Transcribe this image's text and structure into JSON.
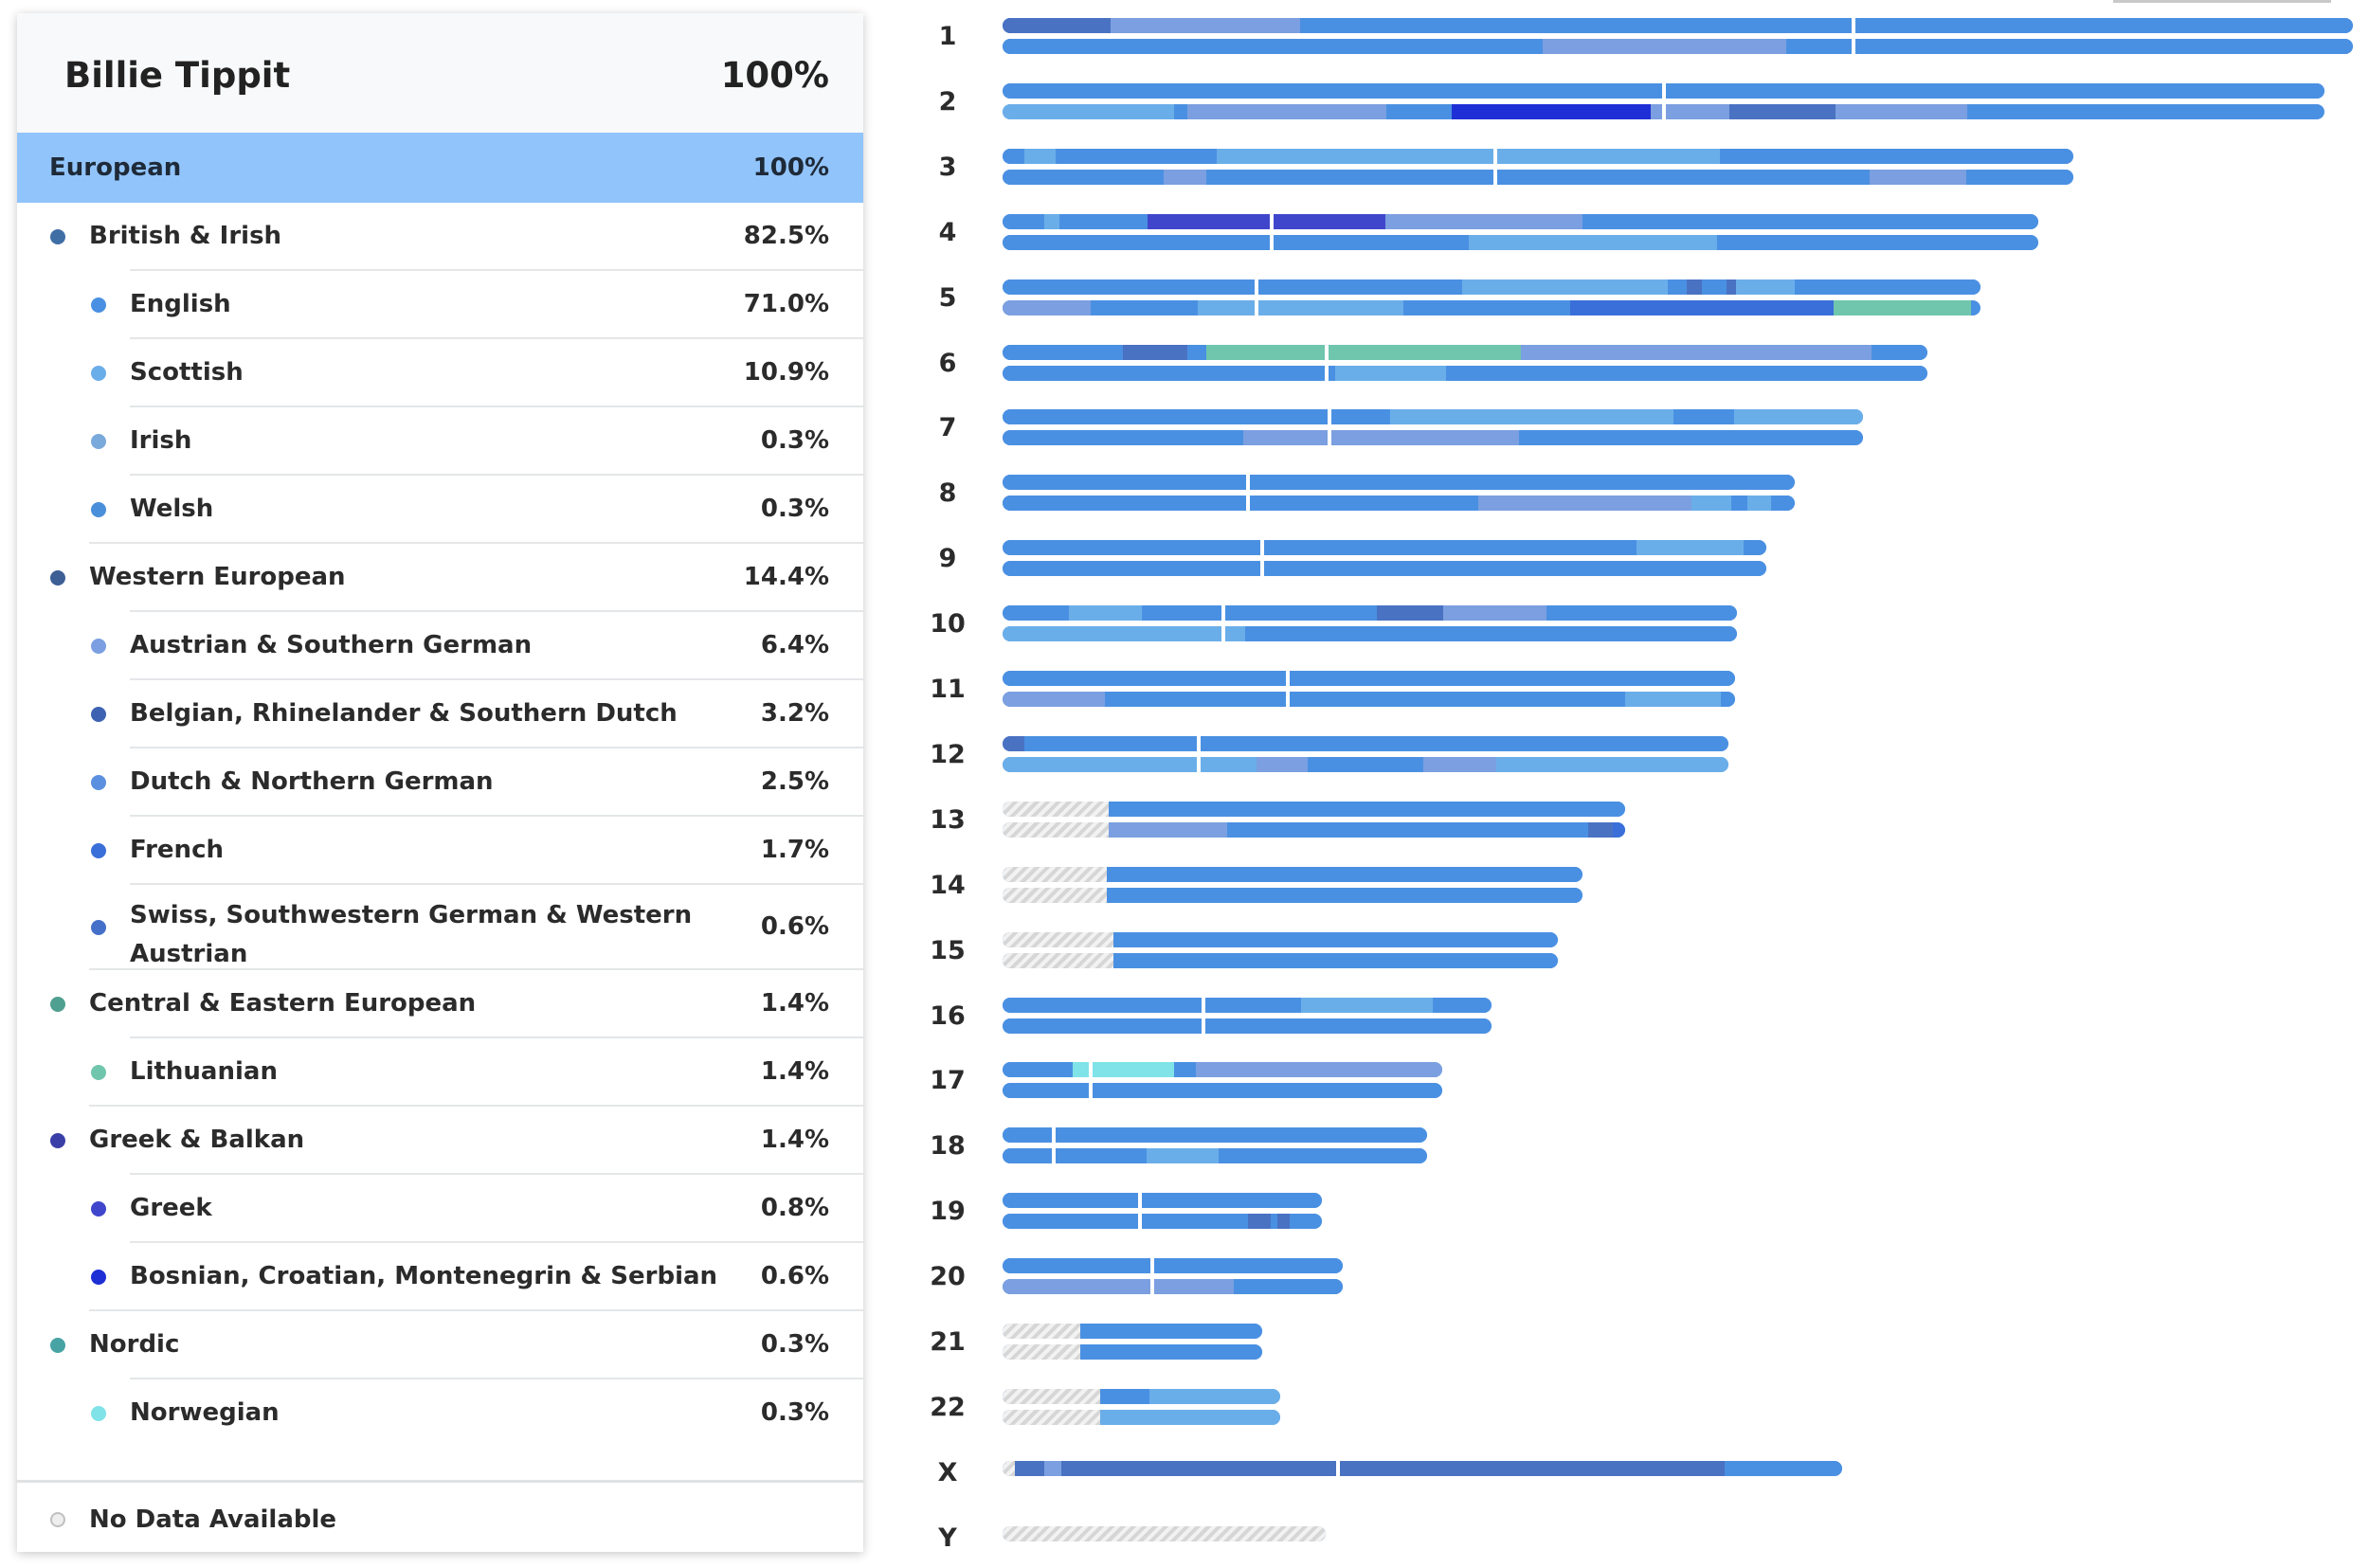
{
  "person": {
    "name": "Billie Tippit",
    "total_pct": "100%"
  },
  "region": {
    "label": "European",
    "pct": "100%"
  },
  "rows": [
    {
      "label": "British & Irish",
      "pct": "82.5%",
      "level": 1,
      "color": "#3f6ea5"
    },
    {
      "label": "English",
      "pct": "71.0%",
      "level": 2,
      "color": "#4a90e2"
    },
    {
      "label": "Scottish",
      "pct": "10.9%",
      "level": 2,
      "color": "#6aaee9"
    },
    {
      "label": "Irish",
      "pct": "0.3%",
      "level": 2,
      "color": "#7aa9dc"
    },
    {
      "label": "Welsh",
      "pct": "0.3%",
      "level": 2,
      "color": "#4a8fda"
    },
    {
      "label": "Western European",
      "pct": "14.4%",
      "level": 1,
      "color": "#3d5f96"
    },
    {
      "label": "Austrian & Southern German",
      "pct": "6.4%",
      "level": 2,
      "color": "#7b9fe0"
    },
    {
      "label": "Belgian, Rhinelander & Southern Dutch",
      "pct": "3.2%",
      "level": 2,
      "color": "#3d62b2"
    },
    {
      "label": "Dutch & Northern German",
      "pct": "2.5%",
      "level": 2,
      "color": "#5b8fe0"
    },
    {
      "label": "French",
      "pct": "1.7%",
      "level": 2,
      "color": "#3a6fd9"
    },
    {
      "label": "Swiss, Southwestern German & Western Austrian",
      "pct": "0.6%",
      "level": 2,
      "color": "#4570c9"
    },
    {
      "label": "Central & Eastern European",
      "pct": "1.4%",
      "level": 1,
      "color": "#4fa090"
    },
    {
      "label": "Lithuanian",
      "pct": "1.4%",
      "level": 2,
      "color": "#6fc6ad"
    },
    {
      "label": "Greek & Balkan",
      "pct": "1.4%",
      "level": 1,
      "color": "#3a3fa8"
    },
    {
      "label": "Greek",
      "pct": "0.8%",
      "level": 2,
      "color": "#4046cc"
    },
    {
      "label": "Bosnian, Croatian, Montenegrin & Serbian",
      "pct": "0.6%",
      "level": 2,
      "color": "#1f2fd6"
    },
    {
      "label": "Nordic",
      "pct": "0.3%",
      "level": 1,
      "color": "#48a3a4"
    },
    {
      "label": "Norwegian",
      "pct": "0.3%",
      "level": 2,
      "color": "#7fe3e8"
    }
  ],
  "footer": {
    "label": "No Data Available"
  },
  "colors": {
    "english": "#4a90e2",
    "scottish": "#6aaee9",
    "western": "#4a72c2",
    "austrian": "#7b9fe0",
    "french": "#3a6fd9",
    "bosnian": "#1f2fd6",
    "greek": "#4046cc",
    "lithuanian": "#6fc6ad",
    "norwegian": "#7fe3e8",
    "nodata": "#dcdcdc"
  },
  "chromosomes": [
    {
      "label": "1",
      "strands": [
        [
          [
            "english",
            0,
            1.0
          ],
          [
            "western",
            0,
            0.08
          ],
          [
            "austrian",
            0.08,
            0.22
          ]
        ],
        [
          [
            "english",
            0,
            1.0
          ],
          [
            "austrian",
            0.4,
            0.51
          ],
          [
            "austrian",
            0.51,
            0.58
          ]
        ]
      ]
    },
    {
      "label": "2",
      "strands": [
        [
          [
            "english",
            0,
            1.0
          ]
        ],
        [
          [
            "scottish",
            0,
            0.13
          ],
          [
            "austrian",
            0.14,
            0.29
          ],
          [
            "bosnian",
            0.34,
            0.4
          ],
          [
            "bosnian",
            0.4,
            0.49
          ],
          [
            "austrian",
            0.49,
            0.55
          ],
          [
            "western",
            0.55,
            0.63
          ],
          [
            "austrian",
            0.63,
            0.73
          ]
        ]
      ]
    },
    {
      "label": "3",
      "strands": [
        [
          [
            "english",
            0,
            1.0
          ],
          [
            "scottish",
            0.02,
            0.05
          ],
          [
            "scottish",
            0.2,
            0.46
          ],
          [
            "scottish",
            0.46,
            0.67
          ]
        ],
        [
          [
            "english",
            0,
            1.0
          ],
          [
            "austrian",
            0.15,
            0.19
          ],
          [
            "austrian",
            0.81,
            0.9
          ]
        ]
      ]
    },
    {
      "label": "4",
      "strands": [
        [
          [
            "english",
            0,
            1.0
          ],
          [
            "scottish",
            0.04,
            0.055
          ],
          [
            "greek",
            0.14,
            0.27
          ],
          [
            "greek",
            0.27,
            0.37
          ],
          [
            "austrian",
            0.37,
            0.56
          ]
        ],
        [
          [
            "english",
            0,
            1.0
          ],
          [
            "scottish",
            0.45,
            0.69
          ]
        ]
      ]
    },
    {
      "label": "5",
      "strands": [
        [
          [
            "english",
            0,
            1.0
          ],
          [
            "scottish",
            0.47,
            0.66
          ],
          [
            "scottish",
            0.66,
            0.68
          ],
          [
            "western",
            0.7,
            0.715
          ],
          [
            "western",
            0.74,
            0.75
          ],
          [
            "scottish",
            0.75,
            0.81
          ]
        ],
        [
          [
            "austrian",
            0,
            0.09
          ],
          [
            "english",
            0.09,
            0.2
          ],
          [
            "scottish",
            0.2,
            0.27
          ],
          [
            "scottish",
            0.27,
            0.41
          ],
          [
            "french",
            0.58,
            0.85
          ],
          [
            "lithuanian",
            0.85,
            0.99
          ]
        ]
      ]
    },
    {
      "label": "6",
      "strands": [
        [
          [
            "english",
            0,
            1.0
          ],
          [
            "western",
            0.13,
            0.2
          ],
          [
            "lithuanian",
            0.22,
            0.36
          ],
          [
            "lithuanian",
            0.36,
            0.56
          ],
          [
            "austrian",
            0.56,
            0.94
          ]
        ],
        [
          [
            "english",
            0,
            1.0
          ],
          [
            "scottish",
            0.36,
            0.48
          ]
        ]
      ]
    },
    {
      "label": "7",
      "strands": [
        [
          [
            "english",
            0,
            1.0
          ],
          [
            "scottish",
            0.45,
            0.78
          ],
          [
            "scottish",
            0.85,
            1.0
          ]
        ],
        [
          [
            "english",
            0,
            1.0
          ],
          [
            "austrian",
            0.28,
            0.38
          ],
          [
            "austrian",
            0.38,
            0.6
          ]
        ]
      ]
    },
    {
      "label": "8",
      "strands": [
        [
          [
            "english",
            0,
            1.0
          ]
        ],
        [
          [
            "english",
            0,
            1.0
          ],
          [
            "austrian",
            0.6,
            0.87
          ],
          [
            "scottish",
            0.87,
            0.92
          ],
          [
            "scottish",
            0.94,
            0.97
          ]
        ]
      ]
    },
    {
      "label": "9",
      "strands": [
        [
          [
            "english",
            0,
            1.0
          ],
          [
            "scottish",
            0.83,
            0.97
          ]
        ],
        [
          [
            "english",
            0,
            1.0
          ]
        ]
      ]
    },
    {
      "label": "10",
      "strands": [
        [
          [
            "english",
            0,
            1.0
          ],
          [
            "scottish",
            0.09,
            0.19
          ],
          [
            "western",
            0.51,
            0.6
          ],
          [
            "austrian",
            0.6,
            0.74
          ]
        ],
        [
          [
            "scottish",
            0,
            0.3
          ],
          [
            "english",
            0.3,
            1.0
          ],
          [
            "scottish",
            0.3,
            0.33
          ]
        ]
      ]
    },
    {
      "label": "11",
      "strands": [
        [
          [
            "english",
            0,
            1.0
          ]
        ],
        [
          [
            "austrian",
            0,
            0.14
          ],
          [
            "english",
            0.14,
            1.0
          ],
          [
            "scottish",
            0.85,
            0.98
          ]
        ]
      ]
    },
    {
      "label": "12",
      "strands": [
        [
          [
            "western",
            0,
            0.03
          ],
          [
            "english",
            0.03,
            1.0
          ]
        ],
        [
          [
            "scottish",
            0,
            0.27
          ],
          [
            "scottish",
            0.27,
            0.35
          ],
          [
            "austrian",
            0.35,
            0.42
          ],
          [
            "austrian",
            0.58,
            0.68
          ],
          [
            "scottish",
            0.68,
            1.0
          ]
        ]
      ]
    },
    {
      "label": "13",
      "strands": [
        [
          [
            "nodata",
            0,
            0.17
          ],
          [
            "english",
            0.17,
            1.0
          ]
        ],
        [
          [
            "nodata",
            0,
            0.17
          ],
          [
            "austrian",
            0.17,
            0.36
          ],
          [
            "english",
            0.36,
            0.94
          ],
          [
            "western",
            0.94,
            0.98
          ],
          [
            "french",
            0.98,
            1.0
          ]
        ]
      ]
    },
    {
      "label": "14",
      "strands": [
        [
          [
            "nodata",
            0,
            0.18
          ],
          [
            "english",
            0.18,
            1.0
          ]
        ],
        [
          [
            "nodata",
            0,
            0.18
          ],
          [
            "english",
            0.18,
            1.0
          ]
        ]
      ]
    },
    {
      "label": "15",
      "strands": [
        [
          [
            "nodata",
            0,
            0.2
          ],
          [
            "english",
            0.2,
            1.0
          ]
        ],
        [
          [
            "nodata",
            0,
            0.2
          ],
          [
            "english",
            0.2,
            1.0
          ]
        ]
      ]
    },
    {
      "label": "16",
      "strands": [
        [
          [
            "english",
            0,
            1.0
          ],
          [
            "scottish",
            0.61,
            0.88
          ]
        ],
        [
          [
            "english",
            0,
            1.0
          ]
        ]
      ]
    },
    {
      "label": "17",
      "strands": [
        [
          [
            "english",
            0,
            0.16
          ],
          [
            "norwegian",
            0.16,
            0.3
          ],
          [
            "norwegian",
            0.3,
            0.39
          ],
          [
            "english",
            0.39,
            0.44
          ],
          [
            "austrian",
            0.44,
            1.0
          ]
        ],
        [
          [
            "english",
            0,
            1.0
          ]
        ]
      ]
    },
    {
      "label": "18",
      "strands": [
        [
          [
            "english",
            0,
            1.0
          ]
        ],
        [
          [
            "english",
            0,
            1.0
          ],
          [
            "scottish",
            0.34,
            0.51
          ]
        ]
      ]
    },
    {
      "label": "19",
      "strands": [
        [
          [
            "english",
            0,
            1.0
          ]
        ],
        [
          [
            "english",
            0,
            1.0
          ],
          [
            "western",
            0.77,
            0.84
          ],
          [
            "western",
            0.86,
            0.9
          ]
        ]
      ]
    },
    {
      "label": "20",
      "strands": [
        [
          [
            "english",
            0,
            1.0
          ]
        ],
        [
          [
            "austrian",
            0,
            0.44
          ],
          [
            "austrian",
            0.44,
            0.68
          ],
          [
            "english",
            0.68,
            1.0
          ]
        ]
      ]
    },
    {
      "label": "21",
      "strands": [
        [
          [
            "nodata",
            0,
            0.3
          ],
          [
            "english",
            0.3,
            1.0
          ]
        ],
        [
          [
            "nodata",
            0,
            0.3
          ],
          [
            "english",
            0.3,
            1.0
          ]
        ]
      ]
    },
    {
      "label": "22",
      "strands": [
        [
          [
            "nodata",
            0,
            0.35
          ],
          [
            "english",
            0.35,
            0.53
          ],
          [
            "scottish",
            0.53,
            1.0
          ]
        ],
        [
          [
            "nodata",
            0,
            0.35
          ],
          [
            "scottish",
            0.35,
            1.0
          ]
        ]
      ]
    },
    {
      "label": "X",
      "strands": [
        [
          [
            "nodata",
            0,
            0.015
          ],
          [
            "western",
            0.015,
            0.05
          ],
          [
            "austrian",
            0.05,
            0.07
          ],
          [
            "western",
            0.07,
            0.86
          ],
          [
            "english",
            0.86,
            1.0
          ]
        ]
      ]
    },
    {
      "label": "Y",
      "strands": [
        [
          [
            "nodata",
            0,
            1.0
          ]
        ]
      ]
    }
  ]
}
